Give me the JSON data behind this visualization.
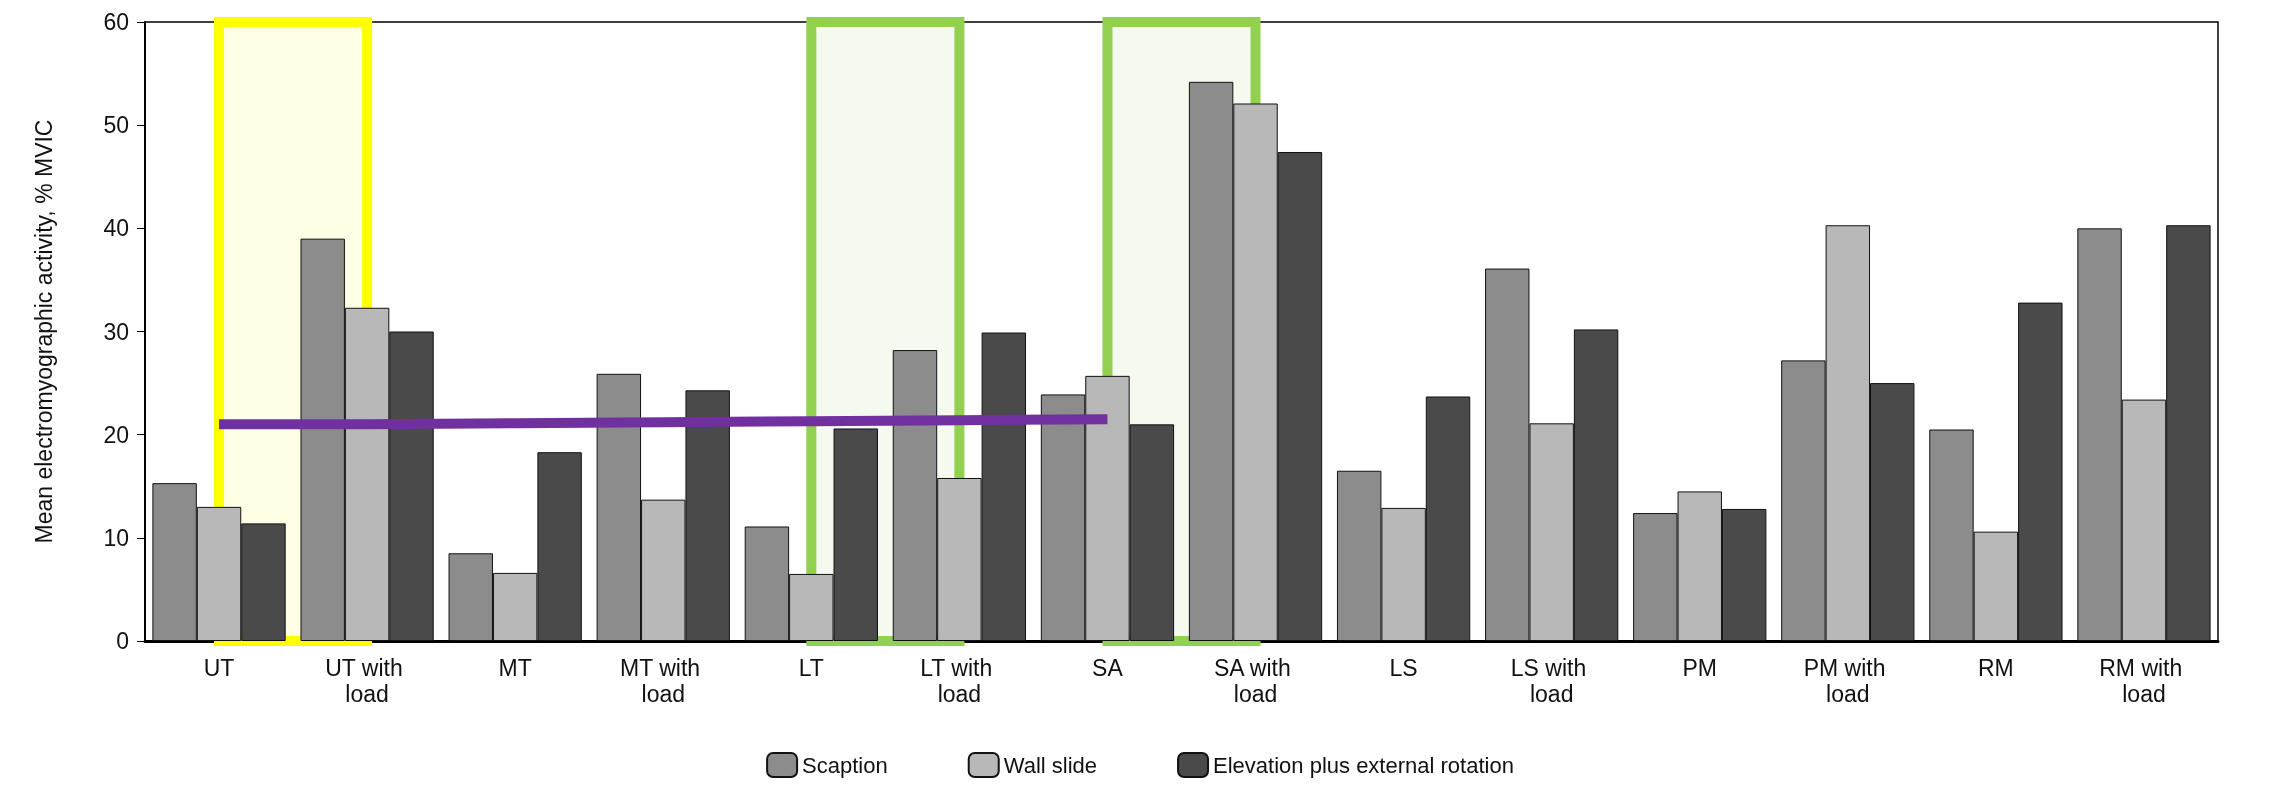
{
  "chart_data": {
    "type": "bar",
    "ylabel": "Mean electromyographic activity, % MVIC",
    "categories": [
      "UT",
      "UT with load",
      "MT",
      "MT with load",
      "LT",
      "LT with load",
      "SA",
      "SA with load",
      "LS",
      "LS with load",
      "PM",
      "PM with load",
      "RM",
      "RM with load"
    ],
    "series": [
      {
        "name": "Scaption",
        "color": "#8c8c8c",
        "values": [
          15.3,
          39,
          8.5,
          25.9,
          11.1,
          28.2,
          23.9,
          54.2,
          16.5,
          36.1,
          12.4,
          27.2,
          20.5,
          40
        ]
      },
      {
        "name": "Wall slide",
        "color": "#b8b8b8",
        "values": [
          13,
          32.3,
          6.6,
          13.7,
          6.5,
          15.8,
          25.7,
          52.1,
          12.9,
          21.1,
          14.5,
          40.3,
          10.6,
          23.4
        ]
      },
      {
        "name": "Elevation plus external rotation",
        "color": "#4a4a4a",
        "values": [
          11.4,
          30,
          18.3,
          24.3,
          20.6,
          29.9,
          21,
          47.4,
          23.7,
          30.2,
          12.8,
          25,
          32.8,
          40.3
        ]
      },
      {
        "type": "line",
        "color": "#7030a0",
        "values": [
          21,
          21,
          21.1,
          21.2,
          21.3,
          21.4,
          21.5,
          null,
          null,
          null,
          null,
          null,
          null,
          null
        ]
      }
    ],
    "bands": [
      {
        "axis": "x",
        "from": "UT",
        "to": "UT with load",
        "color": "#ffff00"
      },
      {
        "axis": "x",
        "from": "LT",
        "to": "LT with load",
        "color": "#92d050"
      },
      {
        "axis": "x",
        "from": "SA",
        "to": "SA with load",
        "color": "#92d050"
      }
    ],
    "ylim": [
      0,
      60
    ],
    "yticks": [
      0,
      10,
      20,
      30,
      40,
      50,
      60
    ],
    "grid": false,
    "legend": "bottom",
    "marker": "none"
  }
}
